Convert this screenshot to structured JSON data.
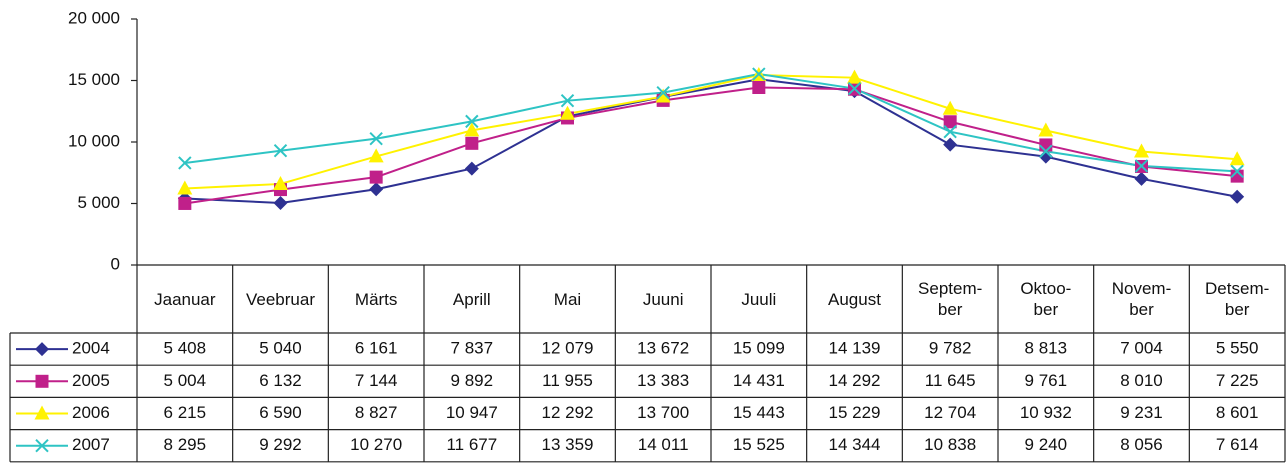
{
  "chart_data": {
    "type": "line",
    "categories": [
      "Jaanuar",
      "Veebruar",
      "Märts",
      "Aprill",
      "Mai",
      "Juuni",
      "Juuli",
      "August",
      "Septem-\nber",
      "Oktoo-\nber",
      "Novem-\nber",
      "Detsem-\nber"
    ],
    "ylim": [
      0,
      20000
    ],
    "yticks": [
      0,
      {
        "value": 5000,
        "label": "5 000"
      },
      {
        "value": 10000,
        "label": "10 000"
      },
      {
        "value": 15000,
        "label": "15 000"
      },
      {
        "value": 20000,
        "label": "20 000"
      }
    ],
    "series": [
      {
        "name": "2004",
        "color": "#2e3192",
        "marker": "diamond",
        "values": [
          5408,
          5040,
          6161,
          7837,
          12079,
          13672,
          15099,
          14139,
          9782,
          8813,
          7004,
          5550
        ],
        "value_labels": [
          "5 408",
          "5 040",
          "6 161",
          "7 837",
          "12 079",
          "13 672",
          "15 099",
          "14 139",
          "9 782",
          "8 813",
          "7 004",
          "5 550"
        ]
      },
      {
        "name": "2005",
        "color": "#c0208a",
        "marker": "square",
        "values": [
          5004,
          6132,
          7144,
          9892,
          11955,
          13383,
          14431,
          14292,
          11645,
          9761,
          8010,
          7225
        ],
        "value_labels": [
          "5 004",
          "6 132",
          "7 144",
          "9 892",
          "11 955",
          "13 383",
          "14 431",
          "14 292",
          "11 645",
          "9 761",
          "8 010",
          "7 225"
        ]
      },
      {
        "name": "2006",
        "color": "#fff200",
        "marker": "triangle",
        "values": [
          6215,
          6590,
          8827,
          10947,
          12292,
          13700,
          15443,
          15229,
          12704,
          10932,
          9231,
          8601
        ],
        "value_labels": [
          "6 215",
          "6 590",
          "8 827",
          "10 947",
          "12 292",
          "13 700",
          "15 443",
          "15 229",
          "12 704",
          "10 932",
          "9 231",
          "8 601"
        ]
      },
      {
        "name": "2007",
        "color": "#2ec4c4",
        "marker": "x",
        "values": [
          8295,
          9292,
          10270,
          11677,
          13359,
          14011,
          15525,
          14344,
          10838,
          9240,
          8056,
          7614
        ],
        "value_labels": [
          "8 295",
          "9 292",
          "10 270",
          "11 677",
          "13 359",
          "14 011",
          "15 525",
          "14 344",
          "10 838",
          "9 240",
          "8 056",
          "7 614"
        ]
      }
    ]
  }
}
